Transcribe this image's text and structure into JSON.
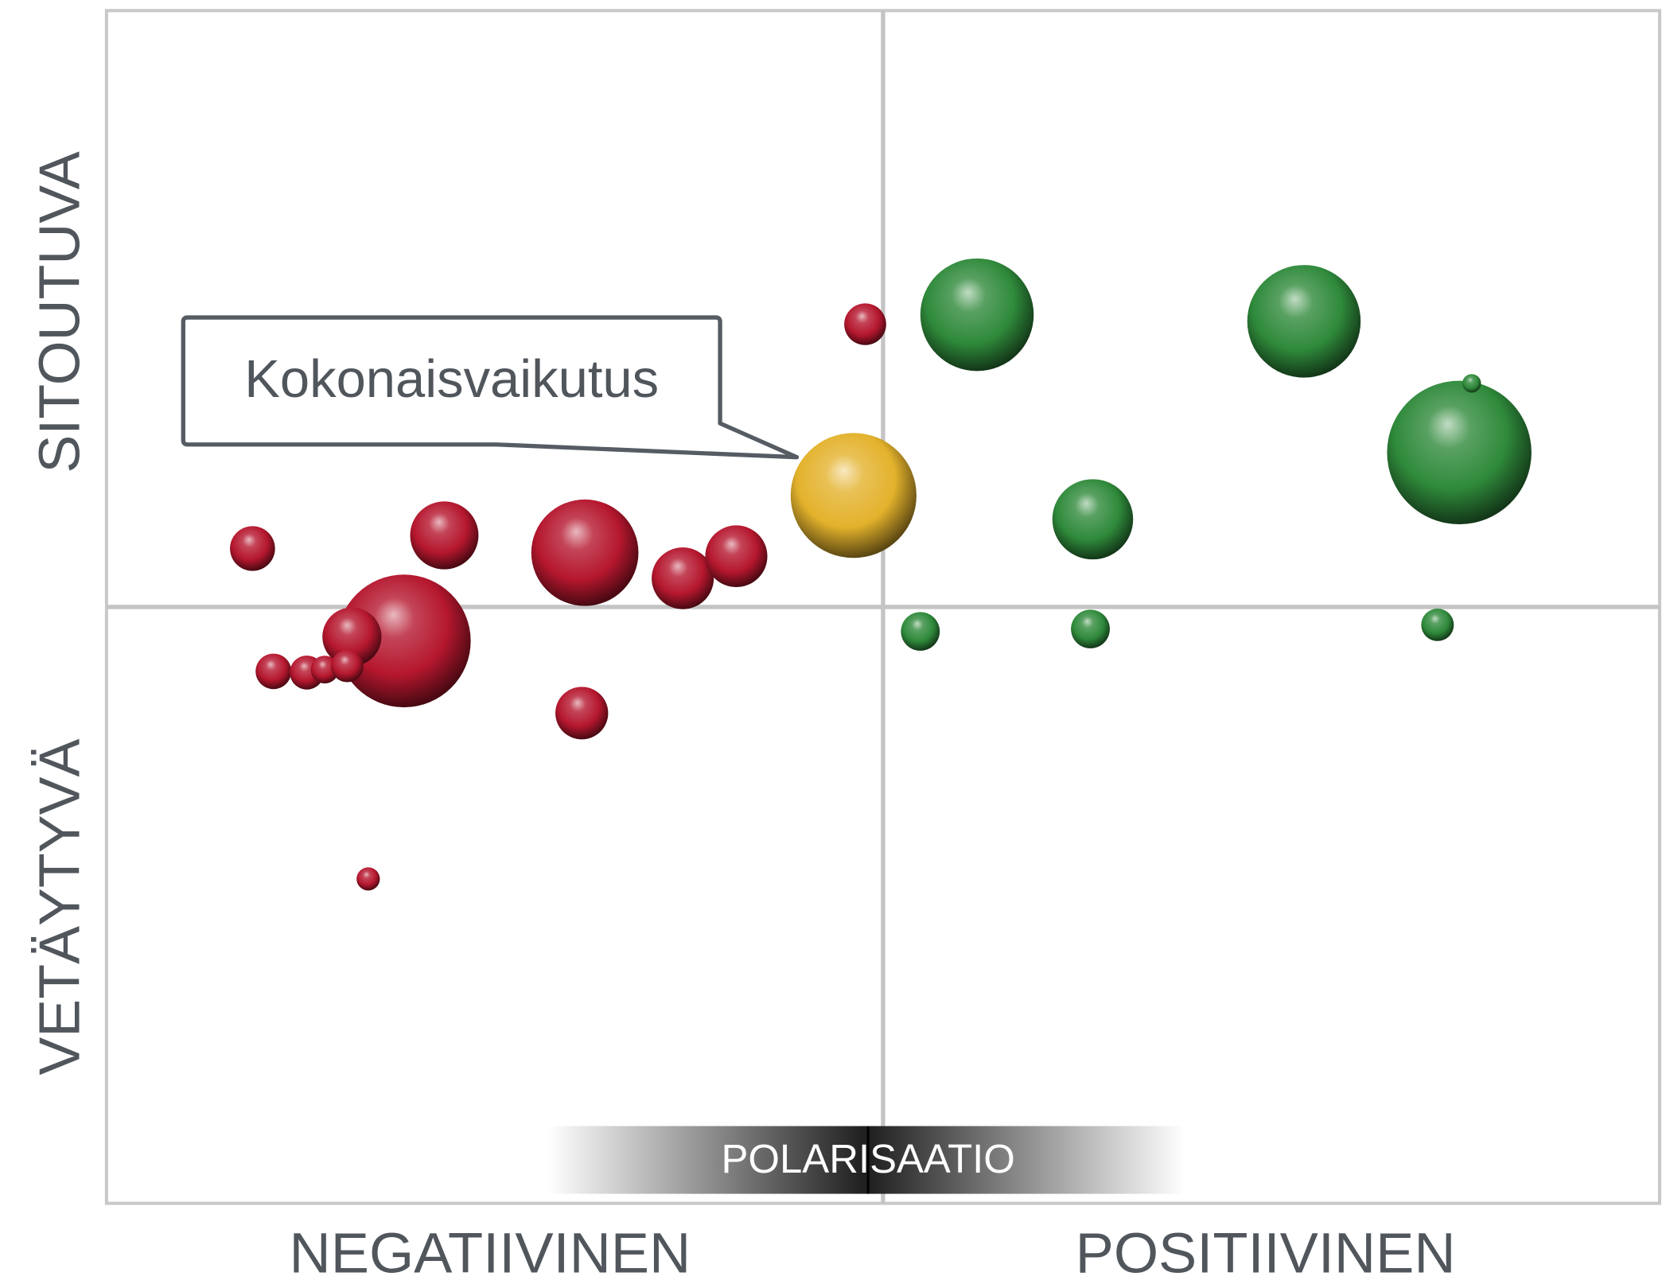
{
  "chart_data": {
    "type": "bubble",
    "annotation": "Kokonaisvaikutus",
    "x_label_left": "NEGATIIVINEN",
    "x_label_right": "POSITIIVINEN",
    "y_label_top": "SITOUTUVA",
    "y_label_bottom": "VETÄYTYVÄ",
    "center_label": "POLARISAATIO",
    "xlim": [
      -100,
      100
    ],
    "ylim": [
      -100,
      100
    ],
    "series": [
      {
        "color": "#b5172e",
        "x": [
          -2.3,
          -81.2,
          -56.5,
          -38.4,
          -25.8,
          -18.9,
          -61.7,
          -68.4,
          -78.5,
          -74.2,
          -71.9,
          -69.0,
          -38.8,
          -66.3
        ],
        "values": [
          47.4,
          9.8,
          12.0,
          9.1,
          4.8,
          8.5,
          -5.7,
          -5.0,
          -10.8,
          -11.0,
          -10.5,
          -9.9,
          -17.8,
          -45.6
        ],
        "sizes": [
          2.7,
          2.9,
          4.4,
          6.9,
          4.0,
          4.0,
          8.6,
          3.8,
          2.3,
          2.2,
          1.8,
          2.1,
          3.4,
          1.5
        ]
      },
      {
        "color": "#e3b22c",
        "x": [
          -3.8
        ],
        "values": [
          18.7
        ],
        "sizes": [
          8.1
        ]
      },
      {
        "color": "#2f8a3b",
        "x": [
          12.1,
          54.2,
          74.2,
          75.8,
          27.0,
          4.8,
          26.7,
          71.4
        ],
        "values": [
          49.0,
          47.9,
          25.9,
          37.5,
          14.7,
          -4.1,
          -3.7,
          -3.0
        ],
        "sizes": [
          7.3,
          7.3,
          9.3,
          1.2,
          5.2,
          2.5,
          2.5,
          2.1
        ]
      }
    ]
  }
}
